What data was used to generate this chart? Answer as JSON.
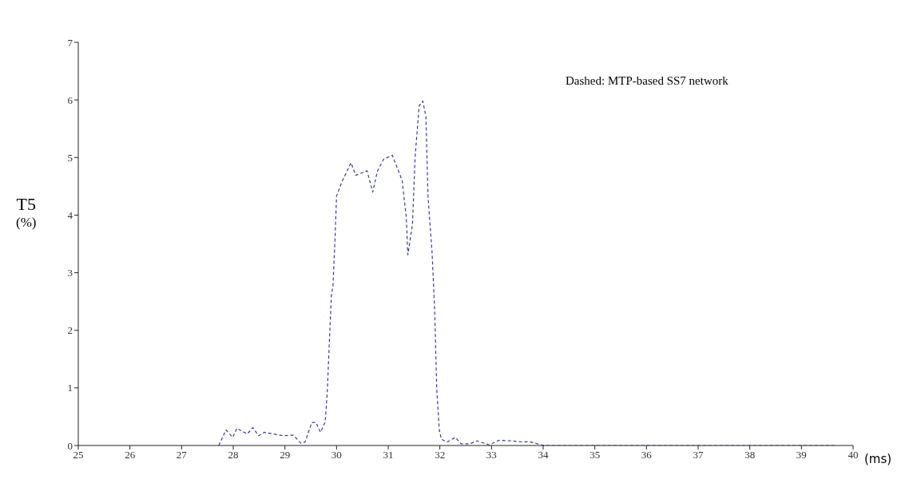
{
  "chart_data": {
    "type": "line",
    "ylabel": "T5 (%)",
    "xlabel": "(ms)",
    "annotations": [
      "Dashed: MTP-based SS7 network"
    ],
    "xlim": [
      25,
      40
    ],
    "xticks": [
      25,
      26,
      27,
      28,
      29,
      30,
      31,
      32,
      33,
      34,
      35,
      36,
      37,
      38,
      39,
      40
    ],
    "ylim": [
      0,
      7
    ],
    "yticks": [
      0,
      1,
      2,
      3,
      4,
      5,
      6,
      7
    ],
    "grid": false,
    "legend": false,
    "marker": "none",
    "line_style": "dashed",
    "series": [
      {
        "color": "#3a3aa0",
        "x": [
          27.72,
          27.86,
          27.99,
          28.07,
          28.27,
          28.38,
          28.49,
          28.6,
          28.96,
          29.16,
          29.31,
          29.39,
          29.52,
          29.6,
          29.69,
          29.78,
          29.82,
          29.86,
          29.9,
          29.93,
          29.97,
          30.0,
          30.1,
          30.28,
          30.37,
          30.59,
          30.7,
          30.79,
          30.91,
          31.08,
          31.27,
          31.35,
          31.38,
          31.47,
          31.52,
          31.6,
          31.67,
          31.73,
          31.77,
          31.85,
          31.9,
          31.94,
          31.99,
          32.03,
          32.14,
          32.3,
          32.41,
          32.58,
          32.72,
          32.96,
          33.14,
          33.39,
          33.62,
          33.72,
          33.97,
          34.1,
          39.65
        ],
        "values": [
          0,
          0.27,
          0.14,
          0.3,
          0.2,
          0.31,
          0.17,
          0.23,
          0.17,
          0.18,
          0.04,
          0.06,
          0.4,
          0.4,
          0.23,
          0.41,
          0.92,
          1.78,
          2.6,
          2.77,
          3.58,
          4.33,
          4.57,
          4.91,
          4.69,
          4.77,
          4.4,
          4.76,
          4.97,
          5.04,
          4.6,
          3.96,
          3.31,
          3.84,
          5.0,
          5.9,
          5.98,
          5.71,
          4.33,
          3.34,
          2.34,
          0.97,
          0.26,
          0.11,
          0.06,
          0.14,
          0.03,
          0.03,
          0.08,
          0.01,
          0.09,
          0.08,
          0.06,
          0.07,
          0.01,
          0,
          0
        ]
      }
    ]
  }
}
